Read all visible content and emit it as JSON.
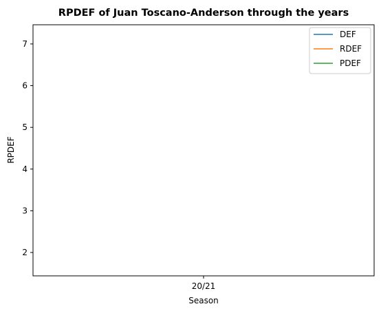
{
  "chart_data": {
    "type": "line",
    "title": "RPDEF of Juan Toscano-Anderson through the years",
    "xlabel": "Season",
    "ylabel": "RPDEF",
    "categories": [
      "20/21"
    ],
    "ylim": [
      1.44,
      7.46
    ],
    "yticks": [
      2,
      3,
      4,
      5,
      6,
      7
    ],
    "grid": false,
    "legend_position": "top-right",
    "series": [
      {
        "name": "DEF",
        "color": "#1f77b4",
        "values": [
          null
        ]
      },
      {
        "name": "RDEF",
        "color": "#ff7f0e",
        "values": [
          null
        ]
      },
      {
        "name": "PDEF",
        "color": "#2ca02c",
        "values": [
          null
        ]
      }
    ]
  }
}
